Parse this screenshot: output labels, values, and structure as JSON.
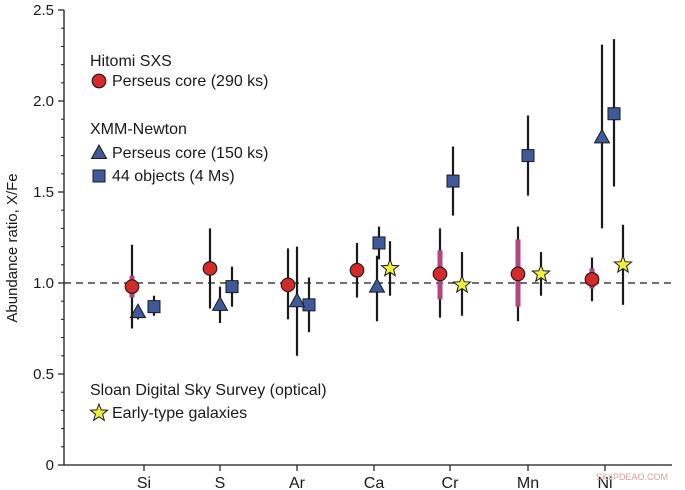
{
  "chart_data": {
    "type": "scatter",
    "ylabel": "Abundance ratio, X/Fe",
    "ylim": [
      0,
      2.5
    ],
    "yticks": [
      "0",
      "0.5",
      "1.0",
      "1.5",
      "2.0",
      "2.5"
    ],
    "ytick_values": [
      0,
      0.5,
      1.0,
      1.5,
      2.0,
      2.5
    ],
    "categories": [
      "Si",
      "S",
      "Ar",
      "Ca",
      "Cr",
      "Mn",
      "Ni"
    ],
    "reference_line": 1.0,
    "grid": false,
    "legend_groups": [
      {
        "title": "Hitomi SXS",
        "entries": [
          {
            "label": "Perseus core (290 ks)",
            "series": 0
          }
        ]
      },
      {
        "title": "XMM-Newton",
        "entries": [
          {
            "label": "Perseus core (150 ks)",
            "series": 1
          },
          {
            "label": "44 objects (4 Ms)",
            "series": 2
          }
        ]
      },
      {
        "title": "Sloan Digital Sky Survey (optical)",
        "entries": [
          {
            "label": "Early-type galaxies",
            "series": 3
          }
        ]
      }
    ],
    "series": [
      {
        "name": "Perseus core (290 ks)",
        "marker": "circle",
        "color": "#d42a2a",
        "syscolor": "#b2457e",
        "points": [
          {
            "cat": "Si",
            "y": 0.98,
            "lo": 0.75,
            "hi": 1.21,
            "slo": 0.92,
            "shi": 1.04
          },
          {
            "cat": "S",
            "y": 1.08,
            "lo": 0.86,
            "hi": 1.3,
            "slo": 1.06,
            "shi": 1.1
          },
          {
            "cat": "Ar",
            "y": 0.99,
            "lo": 0.8,
            "hi": 1.19,
            "slo": 0.96,
            "shi": 1.02
          },
          {
            "cat": "Ca",
            "y": 1.07,
            "lo": 0.92,
            "hi": 1.22,
            "slo": 1.05,
            "shi": 1.09
          },
          {
            "cat": "Cr",
            "y": 1.05,
            "lo": 0.81,
            "hi": 1.3,
            "slo": 0.91,
            "shi": 1.18
          },
          {
            "cat": "Mn",
            "y": 1.05,
            "lo": 0.79,
            "hi": 1.31,
            "slo": 0.87,
            "shi": 1.24
          },
          {
            "cat": "Ni",
            "y": 1.02,
            "lo": 0.9,
            "hi": 1.14,
            "slo": 0.97,
            "shi": 1.08
          }
        ]
      },
      {
        "name": "Perseus core (150 ks)",
        "marker": "triangle",
        "color": "#3e5a9c",
        "points": [
          {
            "cat": "Si",
            "y": 0.84,
            "lo": 0.8,
            "hi": 0.87
          },
          {
            "cat": "S",
            "y": 0.88,
            "lo": 0.78,
            "hi": 0.98
          },
          {
            "cat": "Ar",
            "y": 0.9,
            "lo": 0.6,
            "hi": 1.2
          },
          {
            "cat": "Ca",
            "y": 0.98,
            "lo": 0.79,
            "hi": 1.15
          },
          {
            "cat": "Ni",
            "y": 1.8,
            "lo": 1.3,
            "hi": 2.31
          }
        ]
      },
      {
        "name": "44 objects (4 Ms)",
        "marker": "square",
        "color": "#3e5a9c",
        "points": [
          {
            "cat": "Si",
            "y": 0.87,
            "lo": 0.82,
            "hi": 0.93
          },
          {
            "cat": "S",
            "y": 0.98,
            "lo": 0.87,
            "hi": 1.09
          },
          {
            "cat": "Ar",
            "y": 0.88,
            "lo": 0.73,
            "hi": 1.03
          },
          {
            "cat": "Ca",
            "y": 1.22,
            "lo": 1.13,
            "hi": 1.31
          },
          {
            "cat": "Cr",
            "y": 1.56,
            "lo": 1.37,
            "hi": 1.75
          },
          {
            "cat": "Mn",
            "y": 1.7,
            "lo": 1.48,
            "hi": 1.92
          },
          {
            "cat": "Ni",
            "y": 1.93,
            "lo": 1.53,
            "hi": 2.34
          }
        ]
      },
      {
        "name": "Early-type galaxies",
        "marker": "star",
        "color": "#f2ee3c",
        "points": [
          {
            "cat": "Ca",
            "y": 1.08,
            "lo": 0.93,
            "hi": 1.23
          },
          {
            "cat": "Cr",
            "y": 0.99,
            "lo": 0.82,
            "hi": 1.17
          },
          {
            "cat": "Mn",
            "y": 1.05,
            "lo": 0.93,
            "hi": 1.17
          },
          {
            "cat": "Ni",
            "y": 1.1,
            "lo": 0.88,
            "hi": 1.32
          }
        ]
      }
    ]
  },
  "watermark": "SKIIPDEAO.COM"
}
